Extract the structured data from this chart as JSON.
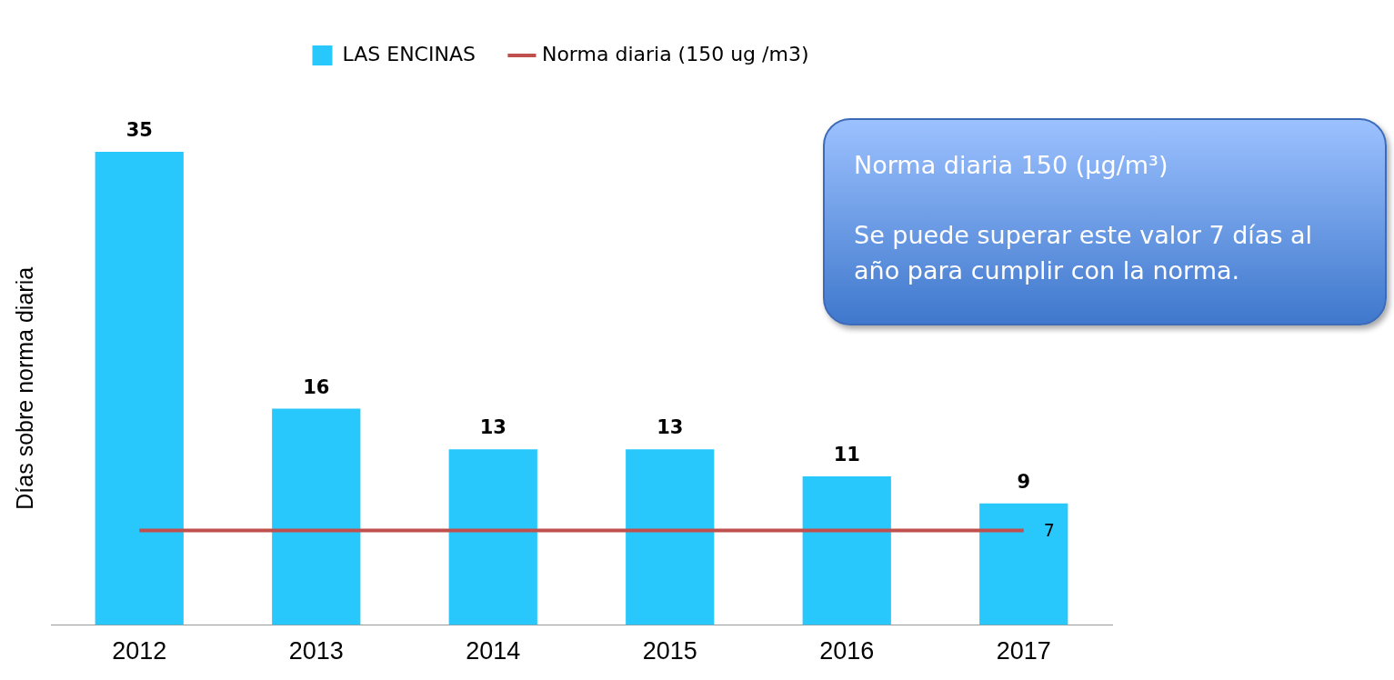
{
  "chart_data": {
    "type": "bar",
    "ylabel": "Días sobre norma diaria",
    "categories": [
      "2012",
      "2013",
      "2014",
      "2015",
      "2016",
      "2017"
    ],
    "series": [
      {
        "name": "LAS ENCINAS",
        "color": "#29c8fc",
        "values": [
          35,
          16,
          13,
          13,
          11,
          9
        ],
        "value_labels": [
          "35",
          "16",
          "13",
          "13",
          "11",
          "9"
        ]
      },
      {
        "name": "Norma diaria (150 ug /m3)",
        "type": "line",
        "color": "#c0504d",
        "values": [
          7,
          7,
          7,
          7,
          7,
          7
        ],
        "value_labels": [
          null,
          null,
          null,
          null,
          null,
          "7"
        ]
      }
    ],
    "annotations": [
      "Norma diaria 150 (µg/m³)",
      "Se puede superar este valor 7 días al año para cumplir con la norma."
    ],
    "legend": "top",
    "grid": false,
    "marker": "none",
    "line_style": "solid"
  }
}
